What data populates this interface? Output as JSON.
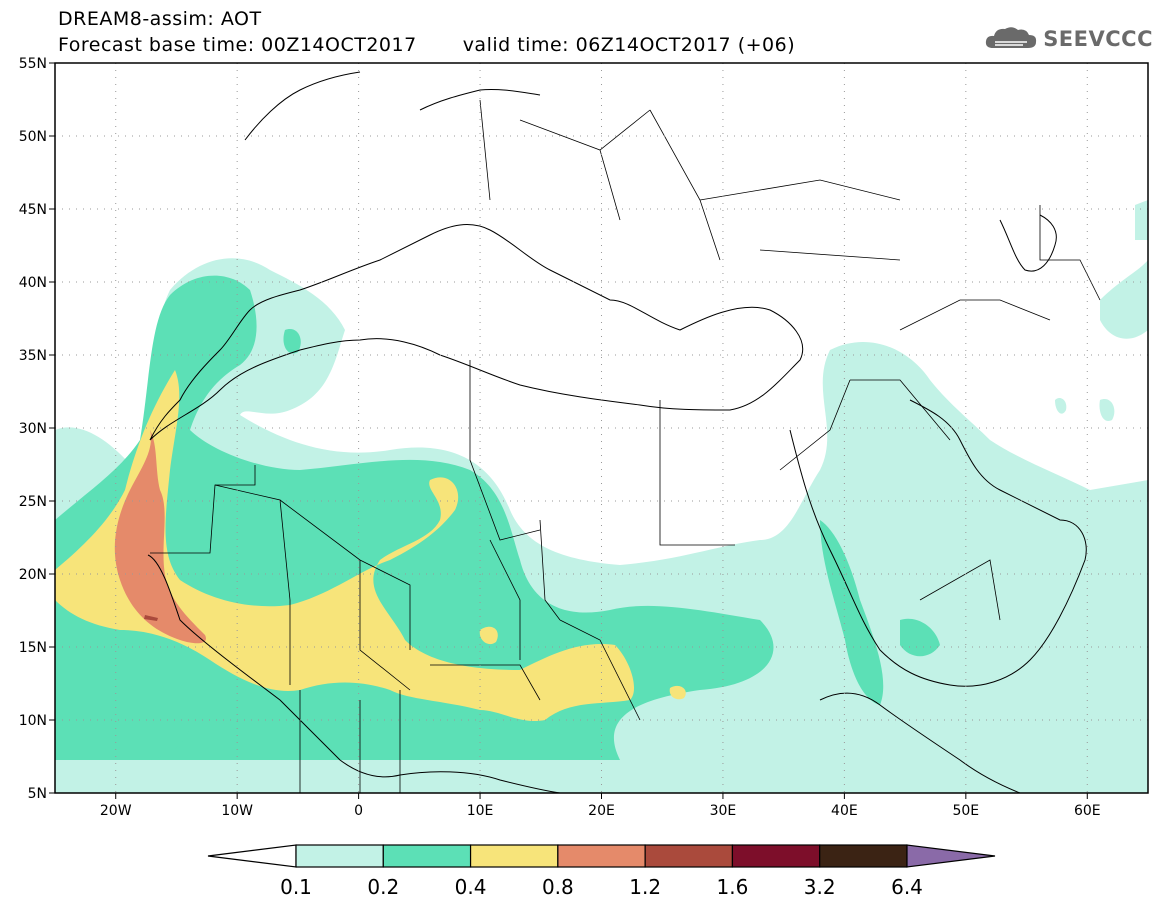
{
  "header": {
    "title": "DREAM8-assim: AOT",
    "base_time_label": "Forecast base time: 00Z14OCT2017",
    "valid_time_label": "valid time: 06Z14OCT2017 (+06)"
  },
  "logo": {
    "text": "SEEVCCC",
    "icon": "cloud-icon"
  },
  "map": {
    "lat_labels": [
      "55N",
      "50N",
      "45N",
      "40N",
      "35N",
      "30N",
      "25N",
      "20N",
      "15N",
      "10N",
      "5N"
    ],
    "lon_labels": [
      "20W",
      "10W",
      "0",
      "10E",
      "20E",
      "30E",
      "40E",
      "50E",
      "60E"
    ],
    "lat_values": [
      55,
      50,
      45,
      40,
      35,
      30,
      25,
      20,
      15,
      10,
      5
    ],
    "lon_values": [
      -20,
      -10,
      0,
      10,
      20,
      30,
      40,
      50,
      60
    ],
    "extent": {
      "lon": [
        -25,
        65
      ],
      "lat": [
        5,
        55
      ]
    }
  },
  "colorbar": {
    "tick_labels": [
      "0.1",
      "0.2",
      "0.4",
      "0.8",
      "1.2",
      "1.6",
      "3.2",
      "6.4"
    ],
    "colors": [
      "#ffffff",
      "#c2f2e6",
      "#5ce0b6",
      "#f7e47a",
      "#e58a6a",
      "#aa4a3c",
      "#7d0e2a",
      "#3b2314",
      "#8a6aa8"
    ]
  },
  "aot_colors": {
    "lvl1": "#c2f2e6",
    "lvl2": "#5ce0b6",
    "lvl3": "#f7e47a",
    "lvl4": "#e58a6a",
    "lvl5": "#aa4a3c"
  }
}
